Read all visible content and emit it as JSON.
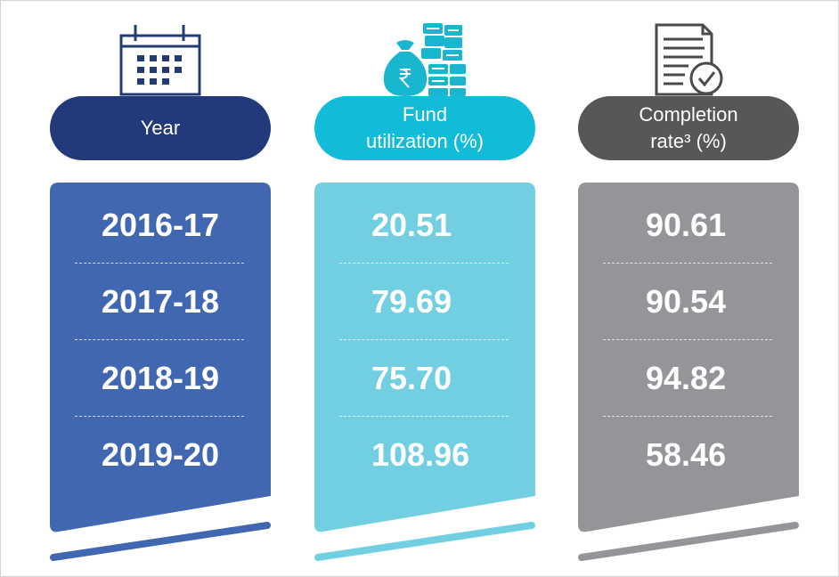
{
  "colors": {
    "year_pill": "#223a7c",
    "year_card": "#4267b1",
    "fund_pill": "#12bcd9",
    "fund_card": "#72cfe2",
    "completion_pill": "#575757",
    "completion_card": "#939598",
    "icon_navy": "#233a73",
    "icon_teal": "#19b6cf",
    "icon_gray": "#4a4a4a"
  },
  "icons": {
    "year": "calendar-icon",
    "fund": "money-bag-coins-icon",
    "completion": "document-checkmark-icon"
  },
  "columns": {
    "year": {
      "header_line1": "Year"
    },
    "fund": {
      "header_line1": "Fund",
      "header_line2": "utilization (%)"
    },
    "completion": {
      "header_line1": "Completion",
      "header_line2": "rate³  (%)"
    }
  },
  "chart_data": {
    "type": "table",
    "columns": [
      "Year",
      "Fund utilization (%)",
      "Completion rate³  (%)"
    ],
    "rows": [
      [
        "2016-17",
        "20.51",
        "90.61"
      ],
      [
        "2017-18",
        "79.69",
        "90.54"
      ],
      [
        "2018-19",
        "75.70",
        "94.82"
      ],
      [
        "2019-20",
        "108.96",
        "58.46"
      ]
    ]
  }
}
